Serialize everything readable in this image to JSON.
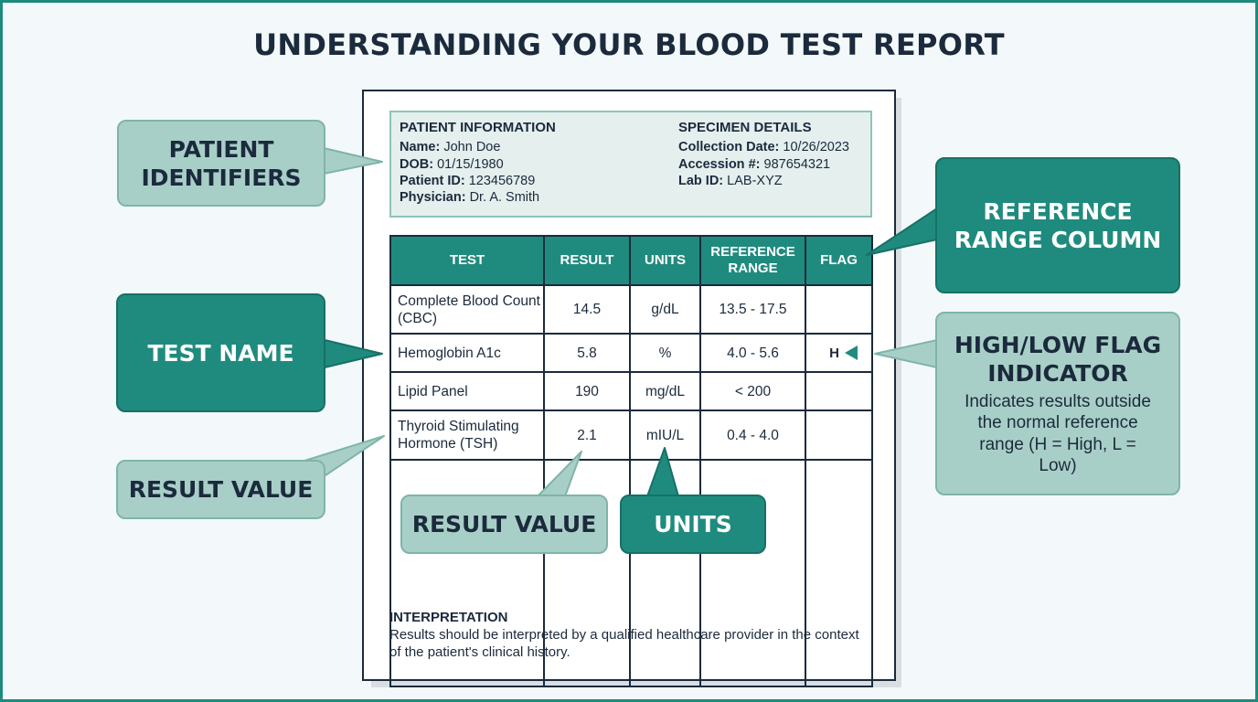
{
  "title": "UNDERSTANDING YOUR BLOOD TEST REPORT",
  "patient_info": {
    "heading": "PATIENT INFORMATION",
    "fields": [
      {
        "label": "Name:",
        "value": "John Doe"
      },
      {
        "label": "DOB:",
        "value": "01/15/1980"
      },
      {
        "label": "Patient ID:",
        "value": "123456789"
      },
      {
        "label": "Physician:",
        "value": "Dr. A. Smith"
      }
    ]
  },
  "specimen": {
    "heading": "SPECIMEN DETAILS",
    "fields": [
      {
        "label": "Collection Date:",
        "value": "10/26/2023"
      },
      {
        "label": "Accession #:",
        "value": "987654321"
      },
      {
        "label": "Lab ID:",
        "value": "LAB-XYZ"
      }
    ]
  },
  "table": {
    "headers": [
      "TEST",
      "RESULT",
      "UNITS",
      "REFERENCE RANGE",
      "FLAG"
    ],
    "rows": [
      {
        "test": "Complete Blood Count (CBC)",
        "result": "14.5",
        "units": "g/dL",
        "range": "13.5 - 17.5",
        "flag": ""
      },
      {
        "test": "Hemoglobin A1c",
        "result": "5.8",
        "units": "%",
        "range": "4.0 - 5.6",
        "flag": "H"
      },
      {
        "test": "Lipid Panel",
        "result": "190",
        "units": "mg/dL",
        "range": "< 200",
        "flag": ""
      },
      {
        "test": "Thyroid Stimulating Hormone (TSH)",
        "result": "2.1",
        "units": "mIU/L",
        "range": "0.4 - 4.0",
        "flag": ""
      }
    ]
  },
  "interpretation": {
    "heading": "INTERPRETATION",
    "text": "Results should be interpreted by a qualified healthcare provider in the context of the patient's clinical history."
  },
  "callouts": {
    "patient_identifiers": "PATIENT IDENTIFIERS",
    "reference_range_column": "REFERENCE RANGE COLUMN",
    "test_name": "TEST NAME",
    "high_low_flag": {
      "title": "HIGH/LOW FLAG INDICATOR",
      "description": "Indicates results outside the normal reference range (H = High, L = Low)"
    },
    "result_value_left": "RESULT VALUE",
    "result_value_inner": "RESULT VALUE",
    "units": "UNITS"
  },
  "colors": {
    "accent": "#1f8b7e",
    "light_callout": "#a8cfc7",
    "text": "#1b2a3c",
    "background": "#f3f9fa"
  }
}
